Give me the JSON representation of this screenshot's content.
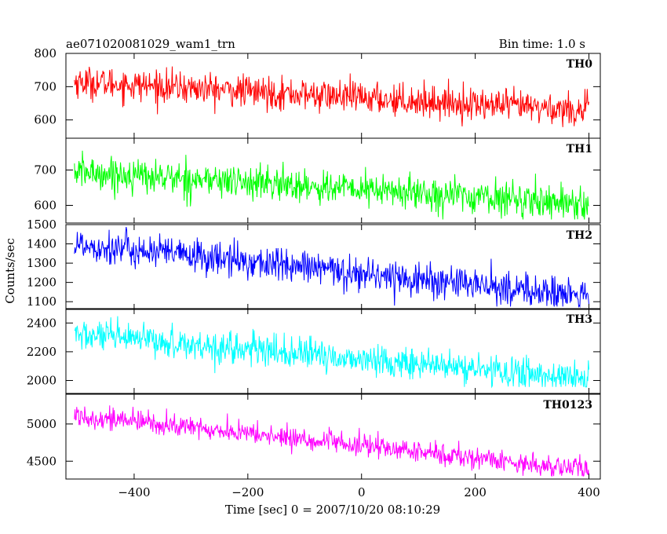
{
  "header": {
    "left_title": "ae071020081029_wam1_trn",
    "right_title": "Bin time: 1.0 s"
  },
  "chart_data": {
    "type": "line",
    "title": "ae071020081029_wam1_trn",
    "subtitle": "Bin time: 1.0 s",
    "xlabel": "Time [sec] 0 = 2007/10/20 08:10:29",
    "ylabel": "Counts/sec",
    "xlim": [
      -520,
      420
    ],
    "x_ticks": [
      -400,
      -200,
      0,
      200,
      400
    ],
    "x_start": -505,
    "x_end": 400,
    "bin_time": 1.0,
    "grid": false,
    "panels": [
      {
        "name": "TH0",
        "color": "#ff0000",
        "ylim": [
          545,
          800
        ],
        "y_ticks": [
          600,
          700,
          800
        ],
        "trend_start": 715,
        "trend_end": 628,
        "noise_sigma": 24,
        "value_range": [
          560,
          800
        ]
      },
      {
        "name": "TH1",
        "color": "#00ff00",
        "ylim": [
          550,
          790
        ],
        "y_ticks": [
          600,
          700
        ],
        "trend_start": 695,
        "trend_end": 605,
        "noise_sigma": 24,
        "value_range": [
          560,
          790
        ]
      },
      {
        "name": "TH2",
        "color": "#0000ff",
        "ylim": [
          1060,
          1500
        ],
        "y_ticks": [
          1100,
          1200,
          1300,
          1400,
          1500
        ],
        "trend_start": 1400,
        "trend_end": 1125,
        "noise_sigma": 45,
        "value_range": [
          1075,
          1500
        ]
      },
      {
        "name": "TH3",
        "color": "#00ffff",
        "ylim": [
          1910,
          2500
        ],
        "y_ticks": [
          2000,
          2200,
          2400
        ],
        "trend_start": 2320,
        "trend_end": 2010,
        "noise_sigma": 55,
        "value_range": [
          1955,
          2500
        ]
      },
      {
        "name": "TH0123",
        "color": "#ff00ff",
        "ylim": [
          4260,
          5400
        ],
        "y_ticks": [
          4500,
          5000
        ],
        "trend_start": 5120,
        "trend_end": 4380,
        "noise_sigma": 75,
        "value_range": [
          4300,
          5370
        ]
      }
    ]
  }
}
